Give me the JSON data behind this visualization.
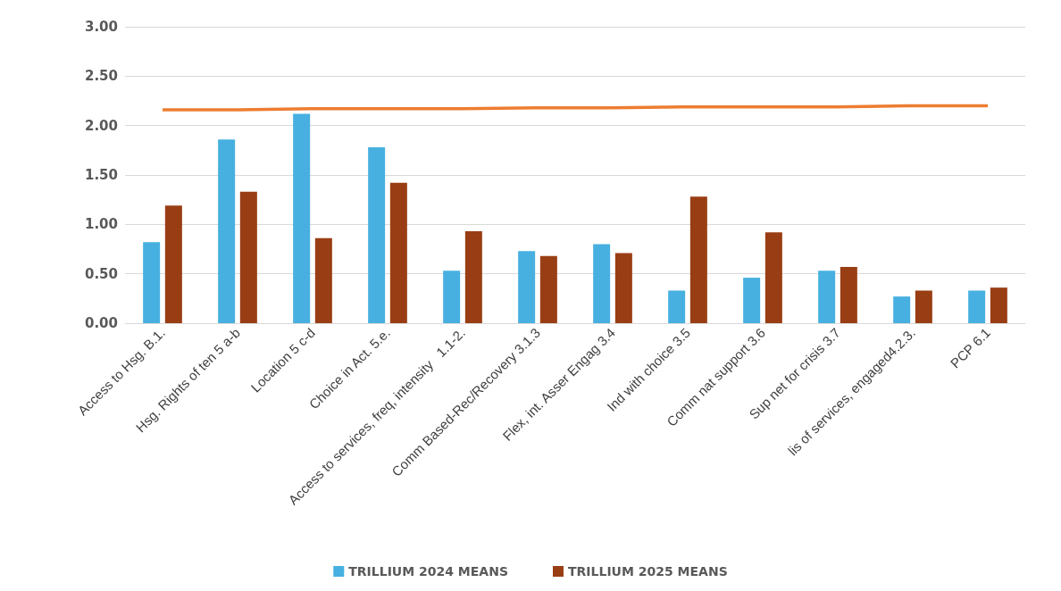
{
  "chart_data": {
    "type": "bar",
    "categories": [
      "Access to Hsg. B.1.",
      "Hsg. Rights of ten 5 a-b",
      "Location 5 c-d",
      "Choice in Act. 5.e.",
      "Access to services, freq, intensity   1.1-2.",
      "Comm Based-Rec/Recovery 3.1.3",
      "Flex, int. Asser Engag 3.4",
      "Ind with choice 3.5",
      "Comm nat support 3.6",
      "Sup net for crisis 3.7",
      "lis of services, engaged4.2.3.",
      "PCP 6.1"
    ],
    "series": [
      {
        "name": "TRILLIUM 2024 MEANS",
        "color": "#47b0e0",
        "values": [
          0.82,
          1.86,
          2.12,
          1.78,
          0.53,
          0.73,
          0.8,
          0.33,
          0.46,
          0.53,
          0.27,
          0.33
        ]
      },
      {
        "name": "TRILLIUM 2025 MEANS",
        "color": "#993e14",
        "values": [
          1.19,
          1.33,
          0.86,
          1.42,
          0.93,
          0.68,
          0.71,
          1.28,
          0.92,
          0.57,
          0.33,
          0.36
        ]
      },
      {
        "type": "line",
        "color": "#ed7d31",
        "values": [
          2.16,
          2.16,
          2.17,
          2.17,
          2.17,
          2.18,
          2.18,
          2.19,
          2.19,
          2.19,
          2.2,
          2.2
        ]
      }
    ],
    "ylim": [
      0,
      3
    ],
    "yticks": [
      {
        "value": 0,
        "label": "0.00"
      },
      {
        "value": 0.5,
        "label": "0.50"
      },
      {
        "value": 1,
        "label": "1.00"
      },
      {
        "value": 1.5,
        "label": "1.50"
      },
      {
        "value": 2,
        "label": "2.00"
      },
      {
        "value": 2.5,
        "label": "2.50"
      },
      {
        "value": 3,
        "label": "3.00"
      }
    ],
    "grid": "y",
    "legend": "bottom",
    "marker": "none"
  }
}
